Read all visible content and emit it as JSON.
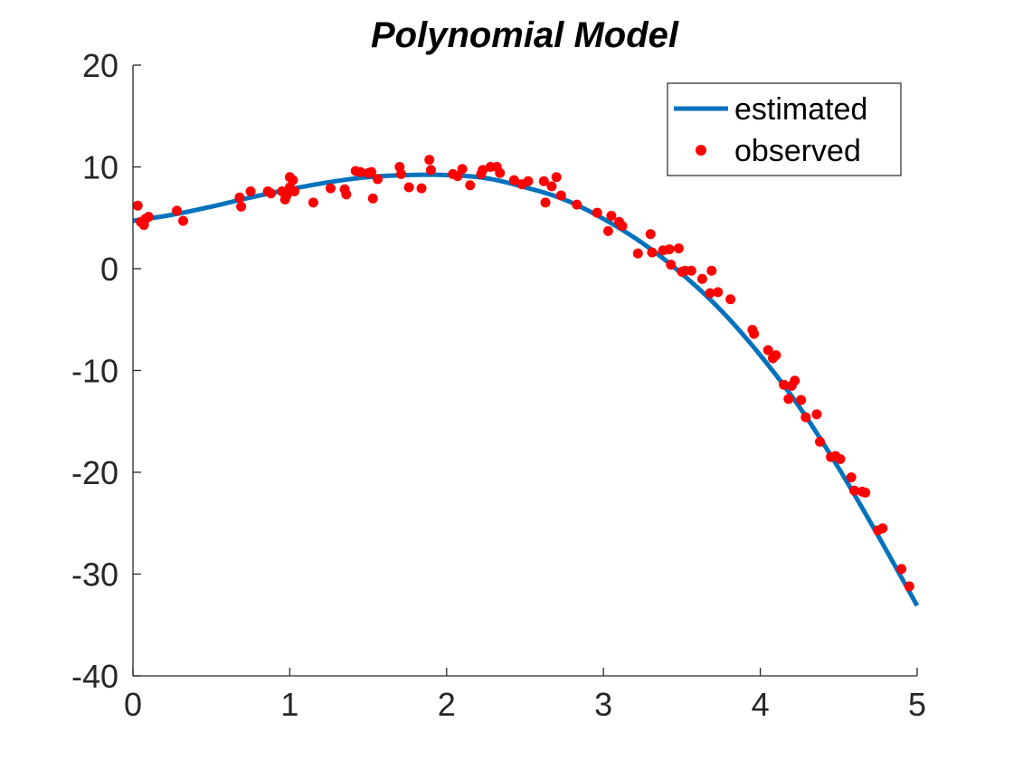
{
  "chart_data": {
    "type": "scatter",
    "title": "Polynomial Model",
    "xlabel": "",
    "ylabel": "",
    "xlim": [
      0,
      5
    ],
    "ylim": [
      -40,
      20
    ],
    "xticks": [
      0,
      1,
      2,
      3,
      4,
      5
    ],
    "yticks": [
      20,
      10,
      0,
      -10,
      -20,
      -30,
      -40
    ],
    "grid": false,
    "legend_position": "top-right",
    "series": [
      {
        "name": "estimated",
        "kind": "line",
        "color": "#0072BD",
        "x": [
          0,
          0.25,
          0.5,
          0.75,
          1,
          1.25,
          1.5,
          1.75,
          2,
          2.25,
          2.5,
          2.75,
          3,
          3.25,
          3.5,
          3.75,
          4,
          4.25,
          4.5,
          4.75,
          5
        ],
        "y": [
          4.7,
          5.3,
          6.1,
          7.0,
          7.8,
          8.5,
          9.0,
          9.2,
          9.2,
          8.9,
          8.0,
          6.8,
          4.9,
          2.5,
          -0.5,
          -4.1,
          -8.5,
          -13.6,
          -19.6,
          -26.2,
          -33.1
        ]
      },
      {
        "name": "observed",
        "kind": "scatter",
        "color": "#FF0000",
        "x": [
          0.03,
          0.05,
          0.07,
          0.08,
          0.1,
          0.28,
          0.32,
          0.68,
          0.69,
          0.75,
          0.86,
          0.88,
          0.95,
          0.97,
          0.98,
          1.0,
          1.0,
          1.02,
          1.03,
          1.15,
          1.26,
          1.35,
          1.36,
          1.42,
          1.45,
          1.5,
          1.52,
          1.53,
          1.56,
          1.7,
          1.71,
          1.76,
          1.84,
          1.89,
          1.9,
          2.04,
          2.07,
          2.1,
          2.15,
          2.22,
          2.23,
          2.28,
          2.32,
          2.34,
          2.43,
          2.48,
          2.52,
          2.62,
          2.63,
          2.67,
          2.7,
          2.73,
          2.83,
          2.96,
          3.03,
          3.05,
          3.1,
          3.12,
          3.22,
          3.3,
          3.31,
          3.38,
          3.42,
          3.43,
          3.48,
          3.5,
          3.52,
          3.56,
          3.63,
          3.68,
          3.69,
          3.73,
          3.81,
          3.95,
          3.96,
          4.05,
          4.08,
          4.1,
          4.15,
          4.18,
          4.2,
          4.22,
          4.26,
          4.29,
          4.36,
          4.38,
          4.45,
          4.48,
          4.51,
          4.58,
          4.6,
          4.65,
          4.67,
          4.75,
          4.78,
          4.9,
          4.95
        ],
        "y": [
          6.2,
          4.6,
          4.3,
          4.9,
          5.1,
          5.7,
          4.7,
          7.0,
          6.1,
          7.6,
          7.6,
          7.4,
          7.6,
          6.8,
          7.2,
          9.0,
          8.0,
          8.7,
          7.6,
          6.5,
          7.9,
          7.8,
          7.3,
          9.6,
          9.5,
          9.4,
          9.5,
          6.9,
          8.8,
          10.0,
          9.3,
          8.0,
          7.9,
          10.7,
          9.7,
          9.3,
          9.1,
          9.8,
          8.2,
          9.3,
          9.7,
          10.0,
          10.0,
          9.4,
          8.7,
          8.3,
          8.6,
          8.6,
          6.5,
          8.1,
          9.0,
          7.2,
          6.3,
          5.5,
          3.7,
          5.2,
          4.6,
          4.2,
          1.5,
          3.4,
          1.6,
          1.8,
          1.9,
          0.4,
          2.0,
          -0.3,
          -0.2,
          -0.2,
          -1.0,
          -2.4,
          -0.2,
          -2.3,
          -3.0,
          -6.0,
          -6.4,
          -8.0,
          -8.8,
          -8.5,
          -11.4,
          -12.8,
          -11.5,
          -11.0,
          -12.9,
          -14.6,
          -14.3,
          -17.0,
          -18.5,
          -18.4,
          -18.7,
          -20.5,
          -21.8,
          -21.9,
          -22.0,
          -25.7,
          -25.5,
          -29.5,
          -31.2
        ]
      }
    ]
  }
}
